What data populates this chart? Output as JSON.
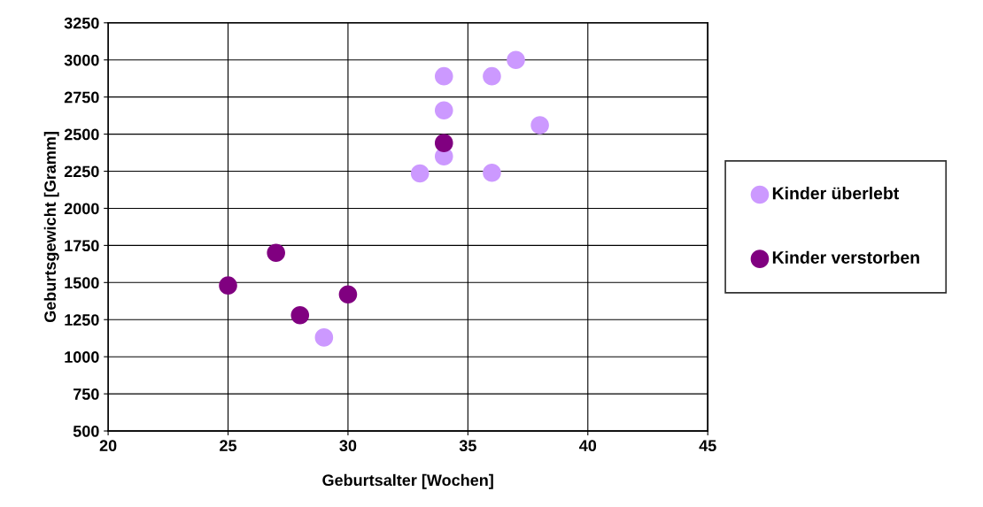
{
  "chart_data": {
    "type": "scatter",
    "xlabel": "Geburtsalter [Wochen]",
    "ylabel": "Geburtsgewicht [Gramm]",
    "xlim": [
      20,
      45
    ],
    "xticks": [
      20,
      25,
      30,
      35,
      40,
      45
    ],
    "ylim": [
      500,
      3250
    ],
    "yticks": [
      500,
      750,
      1000,
      1250,
      1500,
      1750,
      2000,
      2250,
      2500,
      2750,
      3000,
      3250
    ],
    "grid": true,
    "legend": "right",
    "marker": "circle",
    "series": [
      {
        "name": "Kinder überlebt",
        "color": "#cc99ff",
        "x": [
          34,
          37,
          36,
          34,
          38,
          34,
          33,
          36,
          29
        ],
        "values": [
          2890,
          3000,
          2890,
          2660,
          2560,
          2350,
          2235,
          2240,
          1130
        ]
      },
      {
        "name": "Kinder verstorben",
        "color": "#800080",
        "x": [
          34,
          27,
          25,
          28,
          30
        ],
        "values": [
          2440,
          1700,
          1480,
          1280,
          1420
        ]
      }
    ]
  }
}
